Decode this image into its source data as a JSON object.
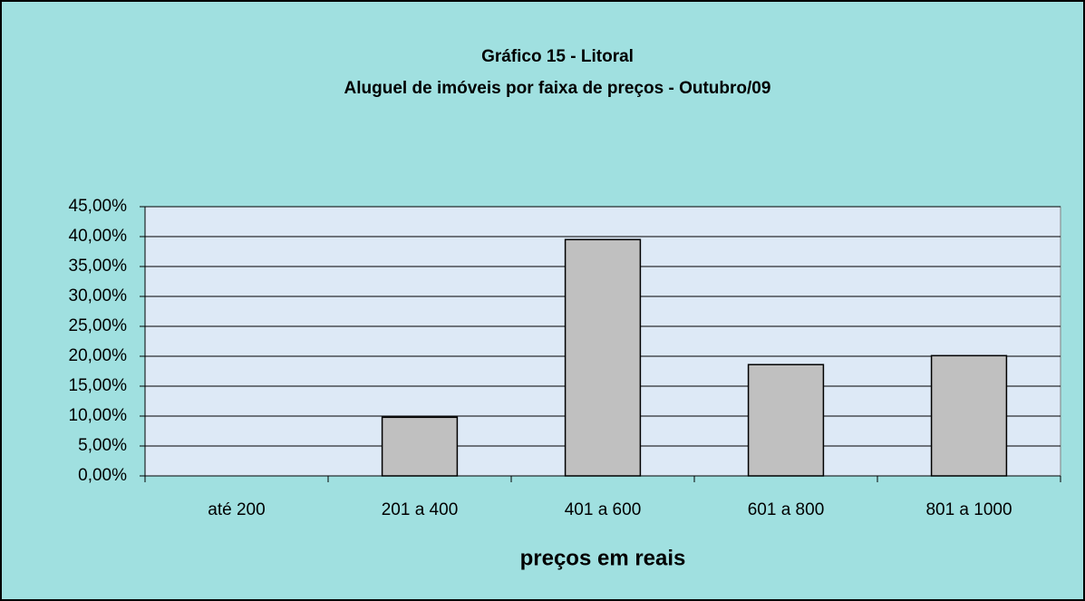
{
  "chart_data": {
    "type": "bar",
    "title": "Gráfico 15 - Litoral",
    "subtitle": "Aluguel de imóveis por faixa de preços - Outubro/09",
    "x_label": "preços em reais",
    "categories": [
      "até 200",
      "201 a 400",
      "401 a 600",
      "601 a 800",
      "801 a 1000"
    ],
    "values": [
      0,
      9.8,
      39.5,
      18.6,
      20.1
    ],
    "color": "#c0c0c0",
    "ylim": [
      0,
      45
    ],
    "yticks": [
      {
        "value": 0,
        "label": "0,00%"
      },
      {
        "value": 5,
        "label": "5,00%"
      },
      {
        "value": 10,
        "label": "10,00%"
      },
      {
        "value": 15,
        "label": "15,00%"
      },
      {
        "value": 20,
        "label": "20,00%"
      },
      {
        "value": 25,
        "label": "25,00%"
      },
      {
        "value": 30,
        "label": "30,00%"
      },
      {
        "value": 35,
        "label": "35,00%"
      },
      {
        "value": 40,
        "label": "40,00%"
      },
      {
        "value": 45,
        "label": "45,00%"
      }
    ],
    "grid": true
  }
}
